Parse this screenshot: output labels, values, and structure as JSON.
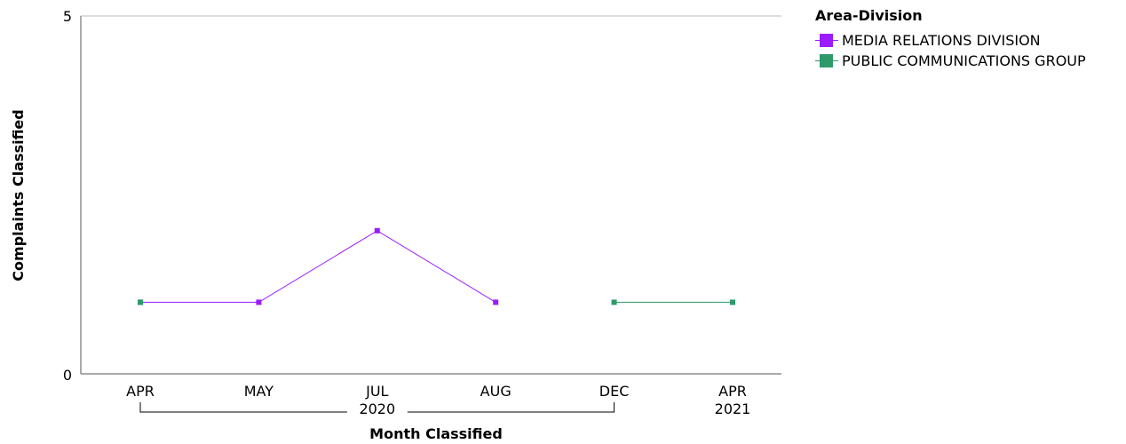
{
  "chart_data": {
    "type": "line",
    "title": "",
    "xlabel": "Month Classified",
    "ylabel": "Complaints Classified",
    "ylim": [
      0,
      5
    ],
    "y_ticks": [
      "0",
      "5"
    ],
    "categories": [
      {
        "month": "APR",
        "year": "2020"
      },
      {
        "month": "MAY",
        "year": "2020"
      },
      {
        "month": "JUL",
        "year": "2020"
      },
      {
        "month": "AUG",
        "year": "2020"
      },
      {
        "month": "DEC",
        "year": "2020"
      },
      {
        "month": "APR",
        "year": "2021"
      }
    ],
    "year_groups": [
      {
        "label": "2020",
        "from": 0,
        "to": 4
      },
      {
        "label": "2021",
        "from": 5,
        "to": 5
      }
    ],
    "legend_title": "Area-Division",
    "legend_position": "top-right",
    "grid": false,
    "series": [
      {
        "name": "MEDIA RELATIONS DIVISION",
        "color": "#9b1cff",
        "values": [
          1,
          1,
          2,
          1,
          null,
          null
        ]
      },
      {
        "name": "PUBLIC COMMUNICATIONS GROUP",
        "color": "#2e9a6a",
        "values": [
          1,
          null,
          null,
          null,
          1,
          1
        ]
      }
    ]
  }
}
